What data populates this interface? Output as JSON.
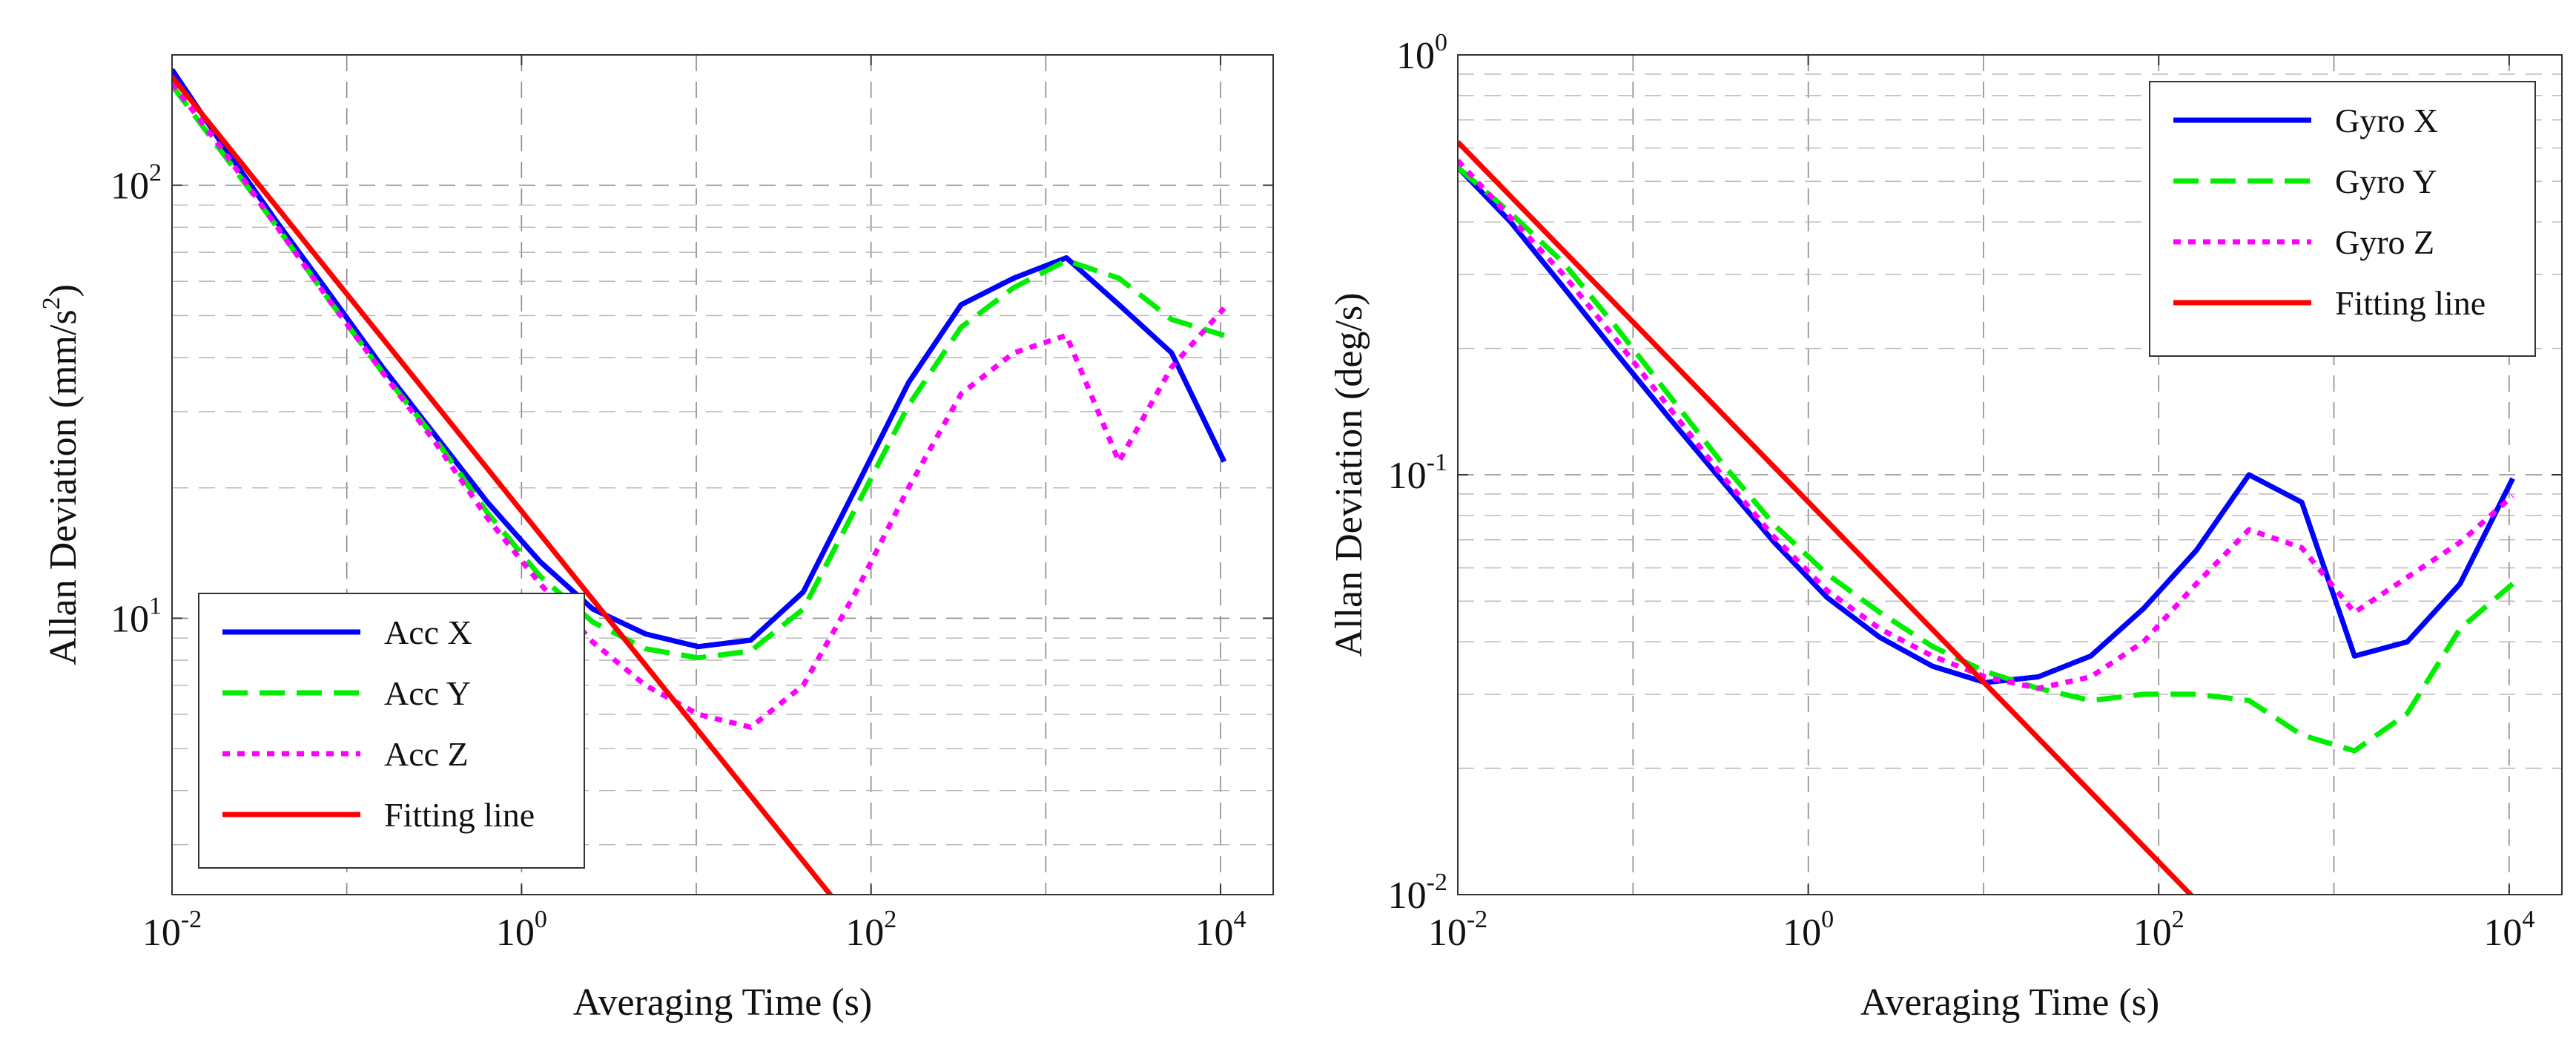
{
  "chart_data": [
    {
      "type": "line",
      "id": "acc",
      "xscale": "log",
      "yscale": "log",
      "xlim": [
        0.01,
        20000
      ],
      "ylim": [
        2.3,
        200
      ],
      "grid": true,
      "legend_position": "bottom-left",
      "xlabel": "Averaging Time (s)",
      "ylabel_main": "Allan Deviation (mm/s",
      "ylabel_exp": "2",
      "ylabel_tail": ")",
      "xticks": [
        {
          "base": "10",
          "exp": "-2",
          "value": 0.01
        },
        {
          "base": "10",
          "exp": "0",
          "value": 1
        },
        {
          "base": "10",
          "exp": "2",
          "value": 100
        },
        {
          "base": "10",
          "exp": "4",
          "value": 10000
        }
      ],
      "yticks": [
        {
          "base": "10",
          "exp": "1",
          "value": 10
        },
        {
          "base": "10",
          "exp": "2",
          "value": 100
        }
      ],
      "series": [
        {
          "name": "Acc X",
          "color": "#0000ff",
          "style": "solid",
          "x": [
            0.01,
            0.02,
            0.04,
            0.08,
            0.16,
            0.32,
            0.64,
            1.28,
            2.56,
            5.12,
            10.24,
            20.48,
            40.96,
            81.92,
            163.84,
            327.68,
            655.36,
            1310.72,
            2621.44,
            5242.88,
            10485.76
          ],
          "y": [
            185,
            122,
            82,
            56,
            38,
            26.5,
            18.5,
            13.5,
            10.5,
            9.2,
            8.6,
            8.9,
            11.5,
            20,
            35,
            53,
            61,
            68,
            53,
            41,
            23
          ]
        },
        {
          "name": "Acc Y",
          "color": "#00ee00",
          "style": "dashed",
          "x": [
            0.01,
            0.02,
            0.04,
            0.08,
            0.16,
            0.32,
            0.64,
            1.28,
            2.56,
            5.12,
            10.24,
            20.48,
            40.96,
            81.92,
            163.84,
            327.68,
            655.36,
            1310.72,
            2621.44,
            5242.88,
            10485.76
          ],
          "y": [
            170,
            117,
            80,
            54,
            37,
            26,
            17.5,
            12.5,
            9.8,
            8.5,
            8.1,
            8.4,
            10.5,
            18,
            31,
            47,
            58,
            67,
            61,
            49,
            45
          ]
        },
        {
          "name": "Acc Z",
          "color": "#ff00ff",
          "style": "dotted",
          "x": [
            0.01,
            0.02,
            0.04,
            0.08,
            0.16,
            0.32,
            0.64,
            1.28,
            2.56,
            5.12,
            10.24,
            20.48,
            40.96,
            81.92,
            163.84,
            327.68,
            655.36,
            1310.72,
            2621.44,
            5242.88,
            10485.76
          ],
          "y": [
            172,
            119,
            80,
            54,
            37,
            25.5,
            17,
            12,
            8.8,
            7,
            6,
            5.6,
            7,
            11.5,
            20,
            33,
            41,
            45,
            23,
            38,
            52
          ]
        },
        {
          "name": "Fitting line",
          "color": "#ff0000",
          "style": "solid",
          "x": [
            0.01,
            70
          ],
          "y": [
            178,
            2.1
          ]
        }
      ]
    },
    {
      "type": "line",
      "id": "gyro",
      "xscale": "log",
      "yscale": "log",
      "xlim": [
        0.01,
        20000
      ],
      "ylim": [
        0.01,
        1
      ],
      "grid": true,
      "legend_position": "top-right",
      "xlabel": "Averaging Time (s)",
      "ylabel_main": "Allan Deviation (deg/s)",
      "ylabel_exp": "",
      "ylabel_tail": "",
      "xticks": [
        {
          "base": "10",
          "exp": "-2",
          "value": 0.01
        },
        {
          "base": "10",
          "exp": "0",
          "value": 1
        },
        {
          "base": "10",
          "exp": "2",
          "value": 100
        },
        {
          "base": "10",
          "exp": "4",
          "value": 10000
        }
      ],
      "yticks": [
        {
          "base": "10",
          "exp": "-2",
          "value": 0.01
        },
        {
          "base": "10",
          "exp": "-1",
          "value": 0.1
        },
        {
          "base": "10",
          "exp": "0",
          "value": 1
        }
      ],
      "series": [
        {
          "name": "Gyro X",
          "color": "#0000ff",
          "style": "solid",
          "x": [
            0.01,
            0.02,
            0.04,
            0.08,
            0.16,
            0.32,
            0.64,
            1.28,
            2.56,
            5.12,
            10.24,
            20.48,
            40.96,
            81.92,
            163.84,
            327.68,
            655.36,
            1310.72,
            2621.44,
            5242.88,
            10485.76
          ],
          "y": [
            0.54,
            0.4,
            0.28,
            0.195,
            0.137,
            0.097,
            0.069,
            0.051,
            0.041,
            0.035,
            0.032,
            0.033,
            0.037,
            0.048,
            0.066,
            0.1,
            0.086,
            0.037,
            0.04,
            0.055,
            0.098
          ]
        },
        {
          "name": "Gyro Y",
          "color": "#00ee00",
          "style": "dashed",
          "x": [
            0.01,
            0.02,
            0.04,
            0.08,
            0.16,
            0.32,
            0.64,
            1.28,
            2.56,
            5.12,
            10.24,
            20.48,
            40.96,
            81.92,
            163.84,
            327.68,
            655.36,
            1310.72,
            2621.44,
            5242.88,
            10485.76
          ],
          "y": [
            0.54,
            0.42,
            0.32,
            0.225,
            0.155,
            0.107,
            0.076,
            0.058,
            0.047,
            0.039,
            0.034,
            0.031,
            0.029,
            0.03,
            0.03,
            0.029,
            0.024,
            0.022,
            0.027,
            0.043,
            0.055
          ]
        },
        {
          "name": "Gyro Z",
          "color": "#ff00ff",
          "style": "dotted",
          "x": [
            0.01,
            0.02,
            0.04,
            0.08,
            0.16,
            0.32,
            0.64,
            1.28,
            2.56,
            5.12,
            10.24,
            20.48,
            40.96,
            81.92,
            163.84,
            327.68,
            655.36,
            1310.72,
            2621.44,
            5242.88,
            10485.76
          ],
          "y": [
            0.56,
            0.41,
            0.3,
            0.21,
            0.145,
            0.1,
            0.071,
            0.053,
            0.043,
            0.037,
            0.033,
            0.031,
            0.033,
            0.04,
            0.055,
            0.074,
            0.067,
            0.047,
            0.057,
            0.069,
            0.089
          ]
        },
        {
          "name": "Fitting line",
          "color": "#ff0000",
          "style": "solid",
          "x": [
            0.01,
            180
          ],
          "y": [
            0.62,
            0.0093
          ]
        }
      ]
    }
  ]
}
